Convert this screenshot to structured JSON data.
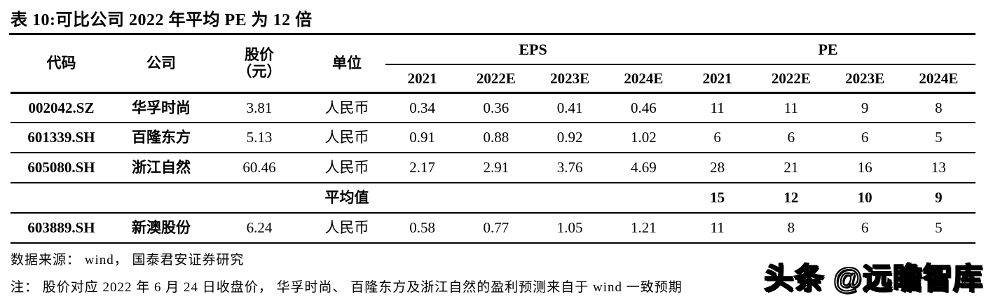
{
  "title": "表 10:可比公司 2022 年平均 PE 为 12 倍",
  "table": {
    "col_headers": {
      "code": "代码",
      "company": "公司",
      "price": "股价",
      "price_unit": "（元）",
      "unit": "单位",
      "eps_group": "EPS",
      "pe_group": "PE",
      "eps_years": [
        "2021",
        "2022E",
        "2023E",
        "2024E"
      ],
      "pe_years": [
        "2021",
        "2022E",
        "2023E",
        "2024E"
      ]
    },
    "rows": [
      {
        "code": "002042.SZ",
        "company": "华孚时尚",
        "price": "3.81",
        "unit": "人民币",
        "eps": [
          "0.34",
          "0.36",
          "0.41",
          "0.46"
        ],
        "pe": [
          "11",
          "11",
          "9",
          "8"
        ]
      },
      {
        "code": "601339.SH",
        "company": "百隆东方",
        "price": "5.13",
        "unit": "人民币",
        "eps": [
          "0.91",
          "0.88",
          "0.92",
          "1.02"
        ],
        "pe": [
          "6",
          "6",
          "6",
          "5"
        ]
      },
      {
        "code": "605080.SH",
        "company": "浙江自然",
        "price": "60.46",
        "unit": "人民币",
        "eps": [
          "2.17",
          "2.91",
          "3.76",
          "4.69"
        ],
        "pe": [
          "28",
          "21",
          "16",
          "13"
        ]
      },
      {
        "code": "",
        "company": "",
        "price": "",
        "unit": "平均值",
        "eps": [
          "",
          "",
          "",
          ""
        ],
        "pe": [
          "15",
          "12",
          "10",
          "9"
        ]
      },
      {
        "code": "603889.SH",
        "company": "新澳股份",
        "price": "6.24",
        "unit": "人民币",
        "eps": [
          "0.58",
          "0.77",
          "1.05",
          "1.21"
        ],
        "pe": [
          "11",
          "8",
          "6",
          "5"
        ]
      }
    ]
  },
  "footer": {
    "source": "数据来源： wind， 国泰君安证券研究",
    "note": "注： 股价对应 2022 年 6 月 24 日收盘价， 华孚时尚、 百隆东方及浙江自然的盈利预测来自于 wind 一致预期"
  },
  "watermark": "头条 @远瞻智库"
}
